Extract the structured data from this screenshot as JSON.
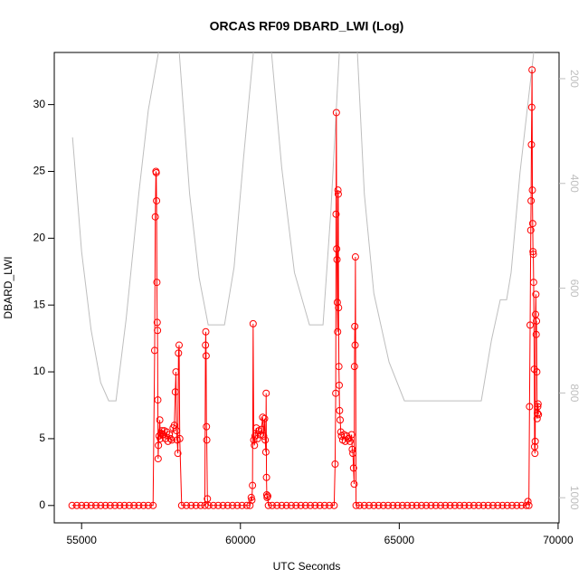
{
  "chart_data": {
    "type": "line",
    "title": "ORCAS RF09 DBARD_LWI (Log)",
    "xlabel": "UTC Seconds",
    "ylabel": "DBARD_LWI",
    "xlim": [
      54140,
      70030
    ],
    "ylim": [
      -1.3,
      33.9
    ],
    "y2lim": [
      1048,
      150
    ],
    "xticks": [
      55000,
      60000,
      65000,
      70000
    ],
    "yticks": [
      0,
      5,
      10,
      15,
      20,
      25,
      30
    ],
    "y2ticks": [
      200,
      400,
      600,
      800,
      1000
    ],
    "series": [
      {
        "color": "#bebebe",
        "axis": "y2",
        "markers": false,
        "x": [
          54715,
          55000,
          55300,
          55600,
          55854,
          56082,
          56400,
          56800,
          57100,
          57420,
          57750,
          58074,
          58400,
          58700,
          58985,
          59498,
          59800,
          60100,
          60408,
          60700,
          60978,
          61300,
          61700,
          62173,
          62600,
          62850,
          63113,
          63400,
          63682,
          63900,
          64200,
          64678,
          65162,
          67582,
          67900,
          68180,
          68379,
          68521,
          68800,
          69233
        ],
        "values": [
          312,
          530,
          680,
          780,
          815,
          815,
          660,
          420,
          260,
          150,
          80,
          150,
          420,
          580,
          670,
          670,
          560,
          350,
          150,
          80,
          150,
          370,
          570,
          670,
          670,
          450,
          150,
          80,
          150,
          420,
          610,
          741,
          815,
          815,
          700,
          622,
          622,
          570,
          380,
          150
        ]
      },
      {
        "color": "#ff0000",
        "markers": true,
        "x": [
          54700,
          54850,
          55000,
          55150,
          55300,
          55450,
          55600,
          55750,
          55900,
          56050,
          56200,
          56350,
          56500,
          56650,
          56800,
          56950,
          57100,
          57250,
          57300,
          57320,
          57340,
          57350,
          57360,
          57370,
          57380,
          57390,
          57400,
          57410,
          57420,
          57440,
          57460,
          57480,
          57500,
          57530,
          57560,
          57600,
          57640,
          57680,
          57720,
          57760,
          57800,
          57840,
          57880,
          57920,
          57950,
          57970,
          57990,
          58010,
          58030,
          58050,
          58070,
          58090,
          58150,
          58300,
          58450,
          58600,
          58750,
          58880,
          58900,
          58910,
          58920,
          58930,
          58940,
          58960,
          59000,
          59150,
          59300,
          59450,
          59600,
          59750,
          59900,
          60050,
          60200,
          60300,
          60340,
          60360,
          60380,
          60400,
          60420,
          60440,
          60460,
          60500,
          60540,
          60580,
          60620,
          60660,
          60700,
          60730,
          60760,
          60780,
          60800,
          60810,
          60820,
          60830,
          60840,
          60860,
          60880,
          61000,
          61150,
          61300,
          61450,
          61600,
          61750,
          61900,
          62050,
          62200,
          62350,
          62500,
          62650,
          62800,
          62950,
          62980,
          63000,
          63010,
          63020,
          63030,
          63040,
          63050,
          63060,
          63070,
          63080,
          63090,
          63100,
          63110,
          63120,
          63140,
          63160,
          63180,
          63220,
          63260,
          63300,
          63350,
          63400,
          63450,
          63500,
          63520,
          63540,
          63560,
          63580,
          63590,
          63600,
          63610,
          63620,
          63640,
          63750,
          63900,
          64050,
          64200,
          64350,
          64500,
          64650,
          64800,
          64950,
          65100,
          65250,
          65400,
          65550,
          65700,
          65850,
          66000,
          66150,
          66300,
          66450,
          66600,
          66750,
          66900,
          67050,
          67200,
          67350,
          67500,
          67650,
          67800,
          67950,
          68100,
          68250,
          68400,
          68550,
          68700,
          68850,
          69000,
          69050,
          69080,
          69100,
          69120,
          69140,
          69150,
          69160,
          69170,
          69180,
          69190,
          69200,
          69210,
          69220,
          69230,
          69250,
          69260,
          69270,
          69280,
          69290,
          69300,
          69310,
          69320,
          69330,
          69340,
          69350,
          69360,
          69370,
          69380
        ],
        "values": [
          0,
          0,
          0,
          0,
          0,
          0,
          0,
          0,
          0,
          0,
          0,
          0,
          0,
          0,
          0,
          0,
          0,
          0,
          11.6,
          21.6,
          25.0,
          24.9,
          22.8,
          16.7,
          13.7,
          13.1,
          7.9,
          3.5,
          4.5,
          5.2,
          6.4,
          5.0,
          5.4,
          5.6,
          5.3,
          5.6,
          5.0,
          5.5,
          4.8,
          5.3,
          5.0,
          4.9,
          5.8,
          6.0,
          8.5,
          10.0,
          5.6,
          4.9,
          3.9,
          11.4,
          12.0,
          5.0,
          0,
          0,
          0,
          0,
          0,
          0,
          12.0,
          13.0,
          11.2,
          5.9,
          4.9,
          0.5,
          0,
          0,
          0,
          0,
          0,
          0,
          0,
          0,
          0,
          0,
          0.6,
          0.4,
          1.5,
          13.6,
          4.9,
          4.5,
          5.2,
          5.8,
          5.0,
          5.6,
          5.3,
          5.7,
          6.6,
          5.2,
          6.5,
          4.9,
          4.0,
          8.4,
          2.1,
          0.8,
          0.6,
          0.7,
          0,
          0,
          0,
          0,
          0,
          0,
          0,
          0,
          0,
          0,
          0,
          0,
          0,
          0,
          0,
          3.1,
          8.4,
          21.8,
          29.4,
          19.2,
          18.4,
          15.2,
          13.0,
          23.6,
          23.3,
          14.8,
          10.4,
          9.0,
          7.1,
          6.4,
          5.5,
          5.2,
          4.9,
          5.3,
          4.8,
          5.2,
          5.0,
          4.8,
          5.3,
          4.2,
          3.9,
          2.8,
          1.6,
          10.4,
          13.4,
          12.0,
          18.6,
          0,
          0,
          0,
          0,
          0,
          0,
          0,
          0,
          0,
          0,
          0,
          0,
          0,
          0,
          0,
          0,
          0,
          0,
          0,
          0,
          0,
          0,
          0,
          0,
          0,
          0,
          0,
          0,
          0,
          0,
          0,
          0,
          0,
          0,
          0,
          0,
          0,
          0.3,
          0,
          7.4,
          13.5,
          20.6,
          22.8,
          27.0,
          29.8,
          32.6,
          23.6,
          21.1,
          19.0,
          18.8,
          16.7,
          10.2,
          4.4,
          3.9,
          4.8,
          14.3,
          15.8,
          12.8,
          13.8,
          10.0,
          6.5,
          6.9,
          7.4,
          7.6,
          6.8
        ]
      }
    ]
  }
}
